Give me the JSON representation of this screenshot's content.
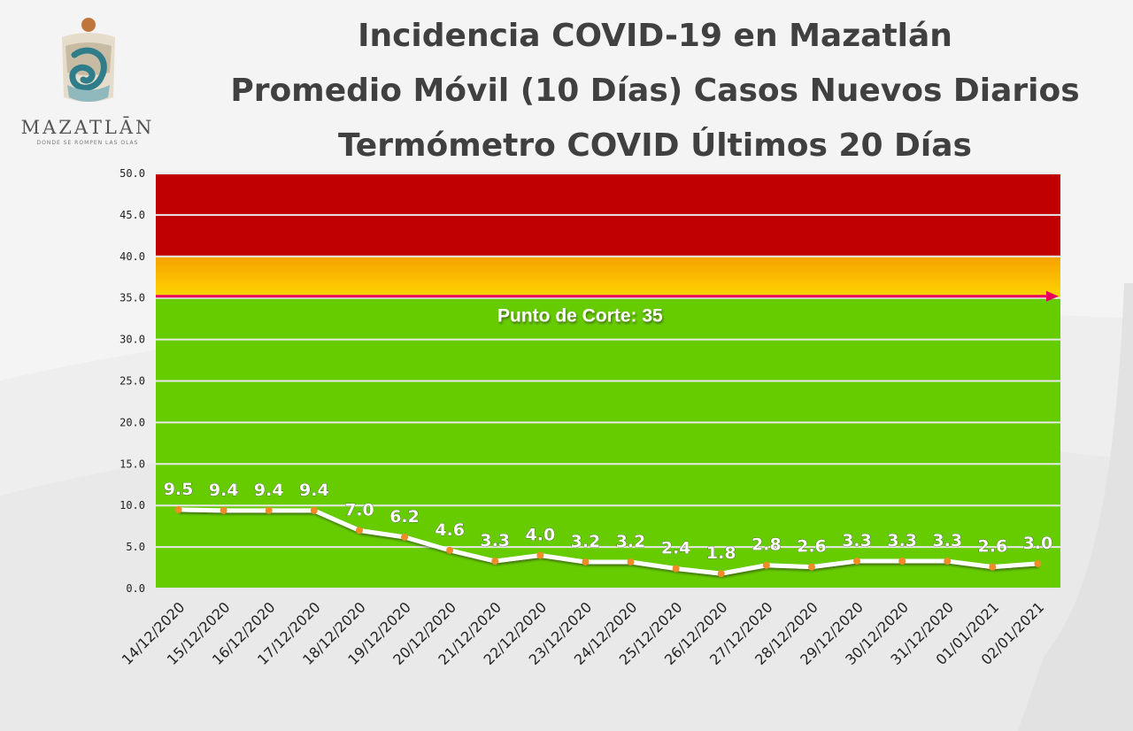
{
  "logo": {
    "name": "MAZATLĀN",
    "tagline": "DONDE SE ROMPEN LAS OLAS"
  },
  "title_lines": [
    "Incidencia COVID-19 en Mazatlán",
    "Promedio Móvil (10 Días) Casos Nuevos Diarios",
    "Termómetro COVID Últimos 20 Días"
  ],
  "chart_data": {
    "type": "line",
    "title": "Incidencia COVID-19 en Mazatlán — Promedio Móvil (10 Días) Casos Nuevos Diarios — Termómetro COVID Últimos 20 Días",
    "categories": [
      "14/12/2020",
      "15/12/2020",
      "16/12/2020",
      "17/12/2020",
      "18/12/2020",
      "19/12/2020",
      "20/12/2020",
      "21/12/2020",
      "22/12/2020",
      "23/12/2020",
      "24/12/2020",
      "25/12/2020",
      "26/12/2020",
      "27/12/2020",
      "28/12/2020",
      "29/12/2020",
      "30/12/2020",
      "31/12/2020",
      "01/01/2021",
      "02/01/2021"
    ],
    "values": [
      9.5,
      9.4,
      9.4,
      9.4,
      7.0,
      6.2,
      4.6,
      3.3,
      4.0,
      3.2,
      3.2,
      2.4,
      1.8,
      2.8,
      2.6,
      3.3,
      3.3,
      3.3,
      2.6,
      3.0
    ],
    "data_labels": [
      "9.5",
      "9.4",
      "9.4",
      "9.4",
      "7.0",
      "6.2",
      "4.6",
      "3.3",
      "4.0",
      "3.2",
      "3.2",
      "2.4",
      "1.8",
      "2.8",
      "2.6",
      "3.3",
      "3.3",
      "3.3",
      "2.6",
      "3.0"
    ],
    "y_ticks": [
      "0.0",
      "5.0",
      "10.0",
      "15.0",
      "20.0",
      "25.0",
      "30.0",
      "35.0",
      "40.0",
      "45.0",
      "50.0"
    ],
    "ylim": [
      0,
      50
    ],
    "grid": true,
    "bands": [
      {
        "from": 0,
        "to": 35,
        "color": "#66cc00"
      },
      {
        "from": 35,
        "to": 40,
        "color": "#f8c100"
      },
      {
        "from": 40,
        "to": 50,
        "color": "#c00000"
      }
    ],
    "cutoff": {
      "value": 35,
      "label": "Punto de Corte: 35",
      "color": "#e8005a"
    },
    "line_color": "#ffffff",
    "marker_color": "#f08c28"
  }
}
